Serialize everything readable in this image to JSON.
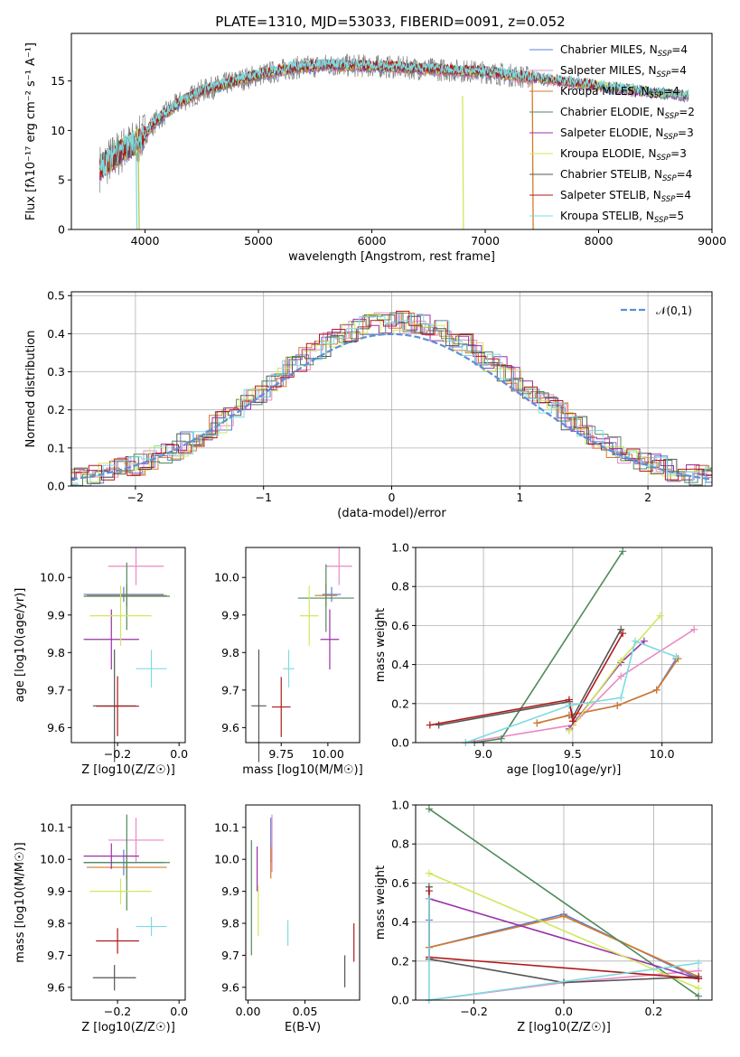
{
  "title": "PLATE=1310, MJD=53033, FIBERID=0091, z=0.052",
  "colors": {
    "Chabrier MILES": "#5b7fd6",
    "Salpeter MILES": "#e98ac3",
    "Kroupa MILES": "#d47a2b",
    "Chabrier ELODIE": "#4f8a5b",
    "Salpeter ELODIE": "#9b30a8",
    "Kroupa ELODIE": "#cfe85a",
    "Chabrier STELIB": "#555555",
    "Salpeter STELIB": "#b01818",
    "Kroupa STELIB": "#7edbe0",
    "gaussian": "#5b8fd6"
  },
  "chart_data": [
    {
      "type": "line",
      "title": "PLATE=1310, MJD=53033, FIBERID=0091, z=0.052",
      "xlabel": "wavelength [Angstrom, rest frame]",
      "ylabel": "Flux [fλ10⁻¹⁷ erg cm⁻² s⁻¹ A⁻¹]",
      "xlim": [
        3350,
        9000
      ],
      "ylim": [
        0,
        19.8
      ],
      "xticks": [
        4000,
        5000,
        6000,
        7000,
        8000,
        9000
      ],
      "yticks": [
        0,
        5,
        10,
        15
      ],
      "legend": "top-right",
      "legend_entries": [
        "Chabrier MILES, N_SSP=4",
        "Salpeter MILES, N_SSP=4",
        "Kroupa MILES, N_SSP=4",
        "Chabrier ELODIE, N_SSP=2",
        "Salpeter ELODIE, N_SSP=3",
        "Kroupa ELODIE, N_SSP=3",
        "Chabrier STELIB, N_SSP=4",
        "Salpeter STELIB, N_SSP=4",
        "Kroupa STELIB, N_SSP=5"
      ],
      "continuum": {
        "x": [
          3600,
          3800,
          3950,
          4100,
          4300,
          4500,
          4800,
          5000,
          5300,
          5600,
          6000,
          6500,
          7000,
          7500,
          8000,
          8500,
          8800
        ],
        "y": [
          6.2,
          8.0,
          9.0,
          11.0,
          12.8,
          14.0,
          15.0,
          15.6,
          16.3,
          16.6,
          16.5,
          16.2,
          15.9,
          15.2,
          14.5,
          13.8,
          13.5
        ]
      }
    },
    {
      "type": "line",
      "xlabel": "(data-model)/error",
      "ylabel": "Normed distribution",
      "xlim": [
        -2.5,
        2.5
      ],
      "ylim": [
        0,
        0.51
      ],
      "xticks": [
        -2,
        -1,
        0,
        1,
        2
      ],
      "yticks": [
        0.0,
        0.1,
        0.2,
        0.3,
        0.4,
        0.5
      ],
      "grid": true,
      "legend": "top-right",
      "legend_entry": "𝒩(0,1)",
      "series": [
        {
          "name": "N(0,1)",
          "style": "dashed"
        }
      ]
    },
    {
      "type": "scatter",
      "xlabel": "Z [log10(Z/Z☉)]",
      "ylabel": "age [log10(age/yr)]",
      "xlim": [
        -0.35,
        0.02
      ],
      "ylim": [
        9.56,
        10.08
      ],
      "xticks": [
        -0.2,
        0.0
      ],
      "yticks": [
        9.6,
        9.7,
        9.8,
        9.9,
        10.0
      ],
      "points": [
        {
          "m": "Chabrier MILES",
          "x": -0.18,
          "xe": 0.13,
          "y": 9.955,
          "ye": 0.02
        },
        {
          "m": "Salpeter MILES",
          "x": -0.14,
          "xe": 0.09,
          "y": 10.03,
          "ye": 0.05
        },
        {
          "m": "Kroupa MILES",
          "x": -0.17,
          "xe": 0.13,
          "y": 9.952,
          "ye": 0.03
        },
        {
          "m": "Chabrier ELODIE",
          "x": -0.17,
          "xe": 0.14,
          "y": 9.95,
          "ye": 0.09
        },
        {
          "m": "Salpeter ELODIE",
          "x": -0.22,
          "xe": 0.09,
          "y": 9.835,
          "ye": 0.08
        },
        {
          "m": "Kroupa ELODIE",
          "x": -0.19,
          "xe": 0.1,
          "y": 9.898,
          "ye": 0.08
        },
        {
          "m": "Chabrier STELIB",
          "x": -0.21,
          "xe": 0.07,
          "y": 9.658,
          "ye": 0.15
        },
        {
          "m": "Salpeter STELIB",
          "x": -0.2,
          "xe": 0.07,
          "y": 9.657,
          "ye": 0.08
        },
        {
          "m": "Kroupa STELIB",
          "x": -0.09,
          "xe": 0.05,
          "y": 9.757,
          "ye": 0.05
        }
      ]
    },
    {
      "type": "scatter",
      "xlabel": "mass [log10(M/M☉)]",
      "xlim": [
        9.56,
        10.17
      ],
      "ylim": [
        9.56,
        10.08
      ],
      "xticks": [
        9.75,
        10.0
      ],
      "yticks": [
        9.6,
        9.7,
        9.8,
        9.9,
        10.0
      ],
      "points": [
        {
          "m": "Chabrier MILES",
          "x": 10.02,
          "xe": 0.05,
          "y": 9.955,
          "ye": 0.02
        },
        {
          "m": "Salpeter MILES",
          "x": 10.06,
          "xe": 0.07,
          "y": 10.03,
          "ye": 0.05
        },
        {
          "m": "Kroupa MILES",
          "x": 9.99,
          "xe": 0.06,
          "y": 9.952,
          "ye": 0.03
        },
        {
          "m": "Chabrier ELODIE",
          "x": 9.99,
          "xe": 0.15,
          "y": 9.945,
          "ye": 0.09
        },
        {
          "m": "Salpeter ELODIE",
          "x": 10.01,
          "xe": 0.05,
          "y": 9.835,
          "ye": 0.08
        },
        {
          "m": "Kroupa ELODIE",
          "x": 9.9,
          "xe": 0.05,
          "y": 9.898,
          "ye": 0.08
        },
        {
          "m": "Chabrier STELIB",
          "x": 9.63,
          "xe": 0.04,
          "y": 9.658,
          "ye": 0.15
        },
        {
          "m": "Salpeter STELIB",
          "x": 9.75,
          "xe": 0.05,
          "y": 9.655,
          "ye": 0.08
        },
        {
          "m": "Kroupa STELIB",
          "x": 9.79,
          "xe": 0.03,
          "y": 9.757,
          "ye": 0.05
        }
      ]
    },
    {
      "type": "line",
      "xlabel": "age [log10(age/yr)]",
      "ylabel": "mass weight",
      "xlim": [
        8.62,
        10.28
      ],
      "ylim": [
        0,
        1
      ],
      "xticks": [
        9.0,
        9.5,
        10.0
      ],
      "yticks": [
        0.0,
        0.2,
        0.4,
        0.6,
        0.8,
        1.0
      ],
      "grid": true,
      "series": [
        {
          "name": "Chabrier MILES",
          "x": [
            9.3,
            9.48,
            9.75,
            9.97,
            10.08
          ],
          "y": [
            0.1,
            0.14,
            0.19,
            0.27,
            0.43
          ]
        },
        {
          "name": "Salpeter MILES",
          "x": [
            8.9,
            9.5,
            9.77,
            10.18
          ],
          "y": [
            0.0,
            0.09,
            0.34,
            0.58
          ]
        },
        {
          "name": "Kroupa MILES",
          "x": [
            9.3,
            9.48,
            9.75,
            9.97,
            10.09
          ],
          "y": [
            0.1,
            0.14,
            0.19,
            0.27,
            0.43
          ]
        },
        {
          "name": "Chabrier ELODIE",
          "x": [
            8.95,
            9.1,
            9.78
          ],
          "y": [
            0.0,
            0.02,
            0.98
          ]
        },
        {
          "name": "Salpeter ELODIE",
          "x": [
            9.48,
            9.77,
            9.9
          ],
          "y": [
            0.07,
            0.41,
            0.52
          ]
        },
        {
          "name": "Kroupa ELODIE",
          "x": [
            9.48,
            9.77,
            9.99
          ],
          "y": [
            0.06,
            0.42,
            0.65
          ]
        },
        {
          "name": "Chabrier STELIB",
          "x": [
            8.75,
            9.48,
            9.5,
            9.77
          ],
          "y": [
            0.09,
            0.21,
            0.13,
            0.58
          ]
        },
        {
          "name": "Salpeter STELIB",
          "x": [
            8.7,
            9.48,
            9.5,
            9.78
          ],
          "y": [
            0.09,
            0.22,
            0.11,
            0.56
          ]
        },
        {
          "name": "Kroupa STELIB",
          "x": [
            8.9,
            9.48,
            9.77,
            9.85,
            10.08
          ],
          "y": [
            0.0,
            0.19,
            0.23,
            0.52,
            0.44
          ]
        }
      ]
    },
    {
      "type": "scatter",
      "xlabel": "Z [log10(Z/Z☉)]",
      "ylabel": "mass [log10(M/M☉)]",
      "xlim": [
        -0.35,
        0.02
      ],
      "ylim": [
        9.56,
        10.17
      ],
      "xticks": [
        -0.2,
        0.0
      ],
      "yticks": [
        9.6,
        9.7,
        9.8,
        9.9,
        10.0,
        10.1
      ],
      "points": [
        {
          "m": "Chabrier MILES",
          "x": -0.18,
          "xe": 0.13,
          "y": 9.99,
          "ye": 0.04
        },
        {
          "m": "Salpeter MILES",
          "x": -0.14,
          "xe": 0.09,
          "y": 10.06,
          "ye": 0.07
        },
        {
          "m": "Kroupa MILES",
          "x": -0.17,
          "xe": 0.13,
          "y": 9.975,
          "ye": 0.04
        },
        {
          "m": "Chabrier ELODIE",
          "x": -0.17,
          "xe": 0.14,
          "y": 9.99,
          "ye": 0.15
        },
        {
          "m": "Salpeter ELODIE",
          "x": -0.22,
          "xe": 0.09,
          "y": 10.01,
          "ye": 0.04
        },
        {
          "m": "Kroupa ELODIE",
          "x": -0.19,
          "xe": 0.1,
          "y": 9.9,
          "ye": 0.04
        },
        {
          "m": "Chabrier STELIB",
          "x": -0.21,
          "xe": 0.07,
          "y": 9.63,
          "ye": 0.04
        },
        {
          "m": "Salpeter STELIB",
          "x": -0.2,
          "xe": 0.07,
          "y": 9.745,
          "ye": 0.04
        },
        {
          "m": "Kroupa STELIB",
          "x": -0.09,
          "xe": 0.05,
          "y": 9.79,
          "ye": 0.03
        }
      ]
    },
    {
      "type": "scatter",
      "xlabel": "E(B-V)",
      "xlim": [
        -0.002,
        0.098
      ],
      "ylim": [
        9.56,
        10.17
      ],
      "xticks": [
        0.0,
        0.05
      ],
      "yticks": [
        9.6,
        9.7,
        9.8,
        9.9,
        10.0,
        10.1
      ],
      "points": [
        {
          "m": "Chabrier MILES",
          "x": 0.02,
          "y": 10.06,
          "ye": 0.07
        },
        {
          "m": "Salpeter MILES",
          "x": 0.021,
          "y": 10.05,
          "ye": 0.09
        },
        {
          "m": "Kroupa MILES",
          "x": 0.02,
          "y": 9.99,
          "ye": 0.05
        },
        {
          "m": "Chabrier ELODIE",
          "x": 0.003,
          "y": 9.88,
          "ye": 0.18
        },
        {
          "m": "Salpeter ELODIE",
          "x": 0.008,
          "y": 9.97,
          "ye": 0.07
        },
        {
          "m": "Kroupa ELODIE",
          "x": 0.009,
          "y": 9.84,
          "ye": 0.08
        },
        {
          "m": "Chabrier STELIB",
          "x": 0.085,
          "y": 9.65,
          "ye": 0.05
        },
        {
          "m": "Salpeter STELIB",
          "x": 0.093,
          "y": 9.74,
          "ye": 0.06
        },
        {
          "m": "Kroupa STELIB",
          "x": 0.035,
          "y": 9.77,
          "ye": 0.04
        }
      ]
    },
    {
      "type": "line",
      "xlabel": "Z [log10(Z/Z☉)]",
      "ylabel": "mass weight",
      "xlim": [
        -0.33,
        0.33
      ],
      "ylim": [
        0,
        1
      ],
      "xticks": [
        -0.2,
        0.0,
        0.2
      ],
      "yticks": [
        0.0,
        0.2,
        0.4,
        0.6,
        0.8,
        1.0
      ],
      "grid": true,
      "series": [
        {
          "name": "Chabrier MILES",
          "x": [
            -0.3,
            -0.3,
            0.0,
            0.3
          ],
          "y": [
            0.41,
            0.27,
            0.44,
            0.11
          ]
        },
        {
          "name": "Salpeter MILES",
          "x": [
            -0.3,
            0.0,
            0.3
          ],
          "y": [
            0.0,
            0.09,
            0.15
          ]
        },
        {
          "name": "Kroupa MILES",
          "x": [
            -0.3,
            0.0,
            0.3
          ],
          "y": [
            0.27,
            0.43,
            0.12
          ]
        },
        {
          "name": "Chabrier ELODIE",
          "x": [
            -0.3,
            0.3
          ],
          "y": [
            0.98,
            0.02
          ]
        },
        {
          "name": "Salpeter ELODIE",
          "x": [
            -0.3,
            0.3
          ],
          "y": [
            0.52,
            0.11
          ]
        },
        {
          "name": "Kroupa ELODIE",
          "x": [
            -0.3,
            0.3
          ],
          "y": [
            0.65,
            0.06
          ]
        },
        {
          "name": "Chabrier STELIB",
          "x": [
            -0.3,
            -0.3,
            0.0,
            0.3
          ],
          "y": [
            0.58,
            0.21,
            0.09,
            0.12
          ]
        },
        {
          "name": "Salpeter STELIB",
          "x": [
            -0.3,
            -0.3,
            0.3
          ],
          "y": [
            0.56,
            0.22,
            0.11
          ]
        },
        {
          "name": "Kroupa STELIB",
          "x": [
            -0.3,
            -0.3,
            0.3
          ],
          "y": [
            0.52,
            0.0,
            0.19
          ]
        }
      ]
    }
  ]
}
